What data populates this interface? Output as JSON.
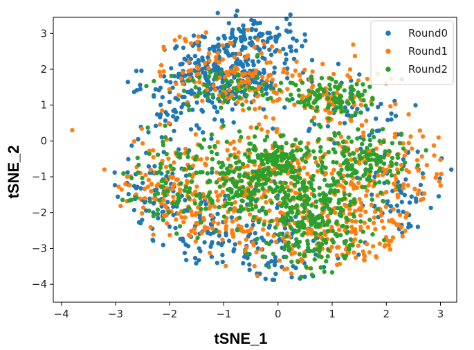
{
  "chart_data": {
    "type": "scatter",
    "xlabel": "tSNE_1",
    "ylabel": "tSNE_2",
    "xlim": [
      -4.15,
      3.3
    ],
    "ylim": [
      -4.5,
      3.45
    ],
    "xticks": [
      -4,
      -3,
      -2,
      -1,
      0,
      1,
      2,
      3
    ],
    "yticks": [
      3,
      2,
      1,
      0,
      -1,
      -2,
      -3,
      -4
    ],
    "grid": false,
    "legend_position": "top-right",
    "series": [
      {
        "name": "Round0",
        "color": "#1f77b4",
        "points_approx": 800,
        "clusters": [
          {
            "x": -0.9,
            "y": 1.9,
            "sx": 0.55,
            "sy": 0.5,
            "w": 0.34
          },
          {
            "x": -1.8,
            "y": 1.2,
            "sx": 0.45,
            "sy": 0.6,
            "w": 0.1
          },
          {
            "x": -2.3,
            "y": -1.6,
            "sx": 0.55,
            "sy": 0.8,
            "w": 0.12
          },
          {
            "x": -1.0,
            "y": -2.7,
            "sx": 0.6,
            "sy": 0.7,
            "w": 0.12
          },
          {
            "x": 0.2,
            "y": -3.0,
            "sx": 0.5,
            "sy": 0.6,
            "w": 0.08
          },
          {
            "x": 2.3,
            "y": -1.8,
            "sx": 0.4,
            "sy": 0.8,
            "w": 0.07
          },
          {
            "x": 1.3,
            "y": 0.8,
            "sx": 0.6,
            "sy": 0.7,
            "w": 0.07
          },
          {
            "x": -0.3,
            "y": 2.9,
            "sx": 0.5,
            "sy": 0.25,
            "w": 0.1
          }
        ]
      },
      {
        "name": "Round1",
        "color": "#ff7f0e",
        "points_approx": 900,
        "clusters": [
          {
            "x": -0.8,
            "y": 1.8,
            "sx": 0.7,
            "sy": 0.6,
            "w": 0.16
          },
          {
            "x": 1.0,
            "y": 1.3,
            "sx": 0.5,
            "sy": 0.4,
            "w": 0.08
          },
          {
            "x": -1.9,
            "y": -1.3,
            "sx": 0.6,
            "sy": 0.8,
            "w": 0.15
          },
          {
            "x": -0.6,
            "y": -1.8,
            "sx": 0.6,
            "sy": 0.9,
            "w": 0.16
          },
          {
            "x": 0.9,
            "y": -2.4,
            "sx": 0.7,
            "sy": 0.7,
            "w": 0.16
          },
          {
            "x": 1.8,
            "y": -0.6,
            "sx": 0.6,
            "sy": 0.6,
            "w": 0.14
          },
          {
            "x": 0.0,
            "y": -0.6,
            "sx": 0.4,
            "sy": 0.5,
            "w": 0.08
          },
          {
            "x": 1.8,
            "y": -2.6,
            "sx": 0.5,
            "sy": 0.6,
            "w": 0.07
          }
        ]
      },
      {
        "name": "Round2",
        "color": "#2ca02c",
        "points_approx": 950,
        "clusters": [
          {
            "x": 0.0,
            "y": -0.6,
            "sx": 0.3,
            "sy": 0.35,
            "w": 0.14
          },
          {
            "x": 0.7,
            "y": -1.9,
            "sx": 0.45,
            "sy": 0.5,
            "w": 0.2
          },
          {
            "x": -0.7,
            "y": -1.3,
            "sx": 0.45,
            "sy": 0.55,
            "w": 0.16
          },
          {
            "x": 1.5,
            "y": -0.5,
            "sx": 0.5,
            "sy": 0.45,
            "w": 0.16
          },
          {
            "x": 1.0,
            "y": 1.2,
            "sx": 0.4,
            "sy": 0.25,
            "w": 0.1
          },
          {
            "x": -1.8,
            "y": -1.2,
            "sx": 0.5,
            "sy": 0.6,
            "w": 0.1
          },
          {
            "x": 0.6,
            "y": -3.0,
            "sx": 0.5,
            "sy": 0.4,
            "w": 0.07
          },
          {
            "x": -0.8,
            "y": 1.4,
            "sx": 0.6,
            "sy": 0.35,
            "w": 0.07
          }
        ]
      }
    ],
    "outliers": [
      {
        "series": "Round1",
        "x": -3.8,
        "y": 0.3
      },
      {
        "series": "Round0",
        "x": 3.2,
        "y": -0.8
      }
    ]
  }
}
